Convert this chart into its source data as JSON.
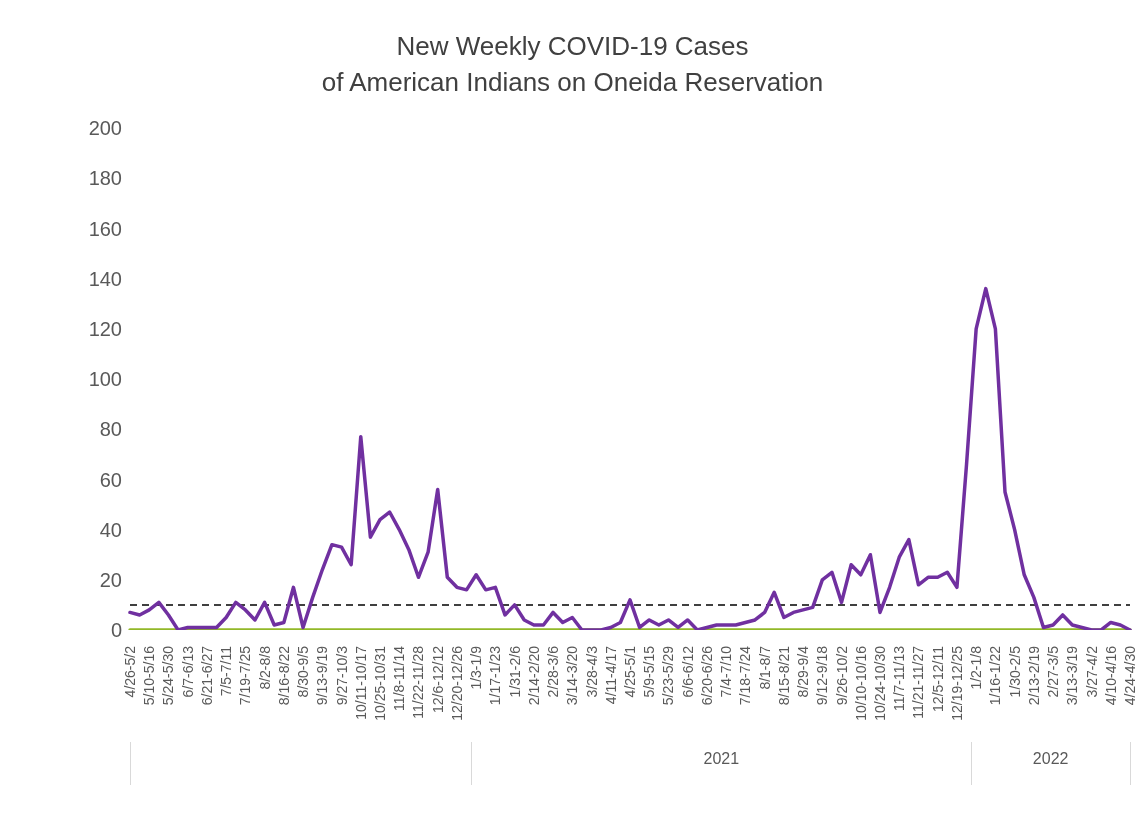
{
  "chart_data": {
    "type": "line",
    "title": "New Weekly COVID-19 Cases\nof American Indians on Oneida Reservation",
    "categories": [
      "4/26-5/2",
      null,
      "5/10-5/16",
      null,
      "5/24-5/30",
      null,
      "6/7-6/13",
      null,
      "6/21-6/27",
      null,
      "7/5-7/11",
      null,
      "7/19-7/25",
      null,
      "8/2-8/8",
      null,
      "8/16-8/22",
      null,
      "8/30-9/5",
      null,
      "9/13-9/19",
      null,
      "9/27-10/3",
      null,
      "10/11-10/17",
      null,
      "10/25-10/31",
      null,
      "11/8-11/14",
      null,
      "11/22-11/28",
      null,
      "12/6-12/12",
      null,
      "12/20-12/26",
      null,
      "1/3-1/9",
      null,
      "1/17-1/23",
      null,
      "1/31-2/6",
      null,
      "2/14-2/20",
      null,
      "2/28-3/6",
      null,
      "3/14-3/20",
      null,
      "3/28-4/3",
      null,
      "4/11-4/17",
      null,
      "4/25-5/1",
      null,
      "5/9-5/15",
      null,
      "5/23-5/29",
      null,
      "6/6-6/12",
      null,
      "6/20-6/26",
      null,
      "7/4-7/10",
      null,
      "7/18-7/24",
      null,
      "8/1-8/7",
      null,
      "8/15-8/21",
      null,
      "8/29-9/4",
      null,
      "9/12-9/18",
      null,
      "9/26-10/2",
      null,
      "10/10-10/16",
      null,
      "10/24-10/30",
      null,
      "11/7-11/13",
      null,
      "11/21-11/27",
      null,
      "12/5-12/11",
      null,
      "12/19-12/25",
      null,
      "1/2-1/8",
      null,
      "1/16-1/22",
      null,
      "1/30-2/5",
      null,
      "2/13-2/19",
      null,
      "2/27-3/5",
      null,
      "3/13-3/19",
      null,
      "3/27-4/2",
      null,
      "4/10-4/16",
      null,
      "4/24-4/30"
    ],
    "series": [
      {
        "color": "#92b828",
        "values": [
          0,
          0,
          0,
          0,
          0,
          0,
          0,
          0,
          0,
          0,
          0,
          0,
          0,
          0,
          0,
          0,
          0,
          0,
          0,
          0,
          0,
          0,
          0,
          0,
          0,
          0,
          0,
          0,
          0,
          0,
          0,
          0,
          0,
          0,
          0,
          0,
          0,
          0,
          0,
          0,
          0,
          0,
          0,
          0,
          0,
          0,
          0,
          0,
          0,
          0,
          0,
          0,
          0,
          0,
          0,
          0,
          0,
          0,
          0,
          0,
          0,
          0,
          0,
          0,
          0,
          0,
          0,
          0,
          0,
          0,
          0,
          0,
          0,
          0,
          0,
          0,
          0,
          0,
          0,
          0,
          0,
          0,
          0,
          0,
          0,
          0,
          0,
          0,
          0,
          0,
          0,
          0,
          0,
          0,
          0,
          0,
          0,
          0,
          0,
          0,
          0,
          0,
          0,
          0,
          0
        ]
      },
      {
        "color": "#7030a0",
        "values": [
          7,
          6,
          8,
          11,
          6,
          0,
          1,
          1,
          1,
          1,
          5,
          11,
          8,
          4,
          11,
          2,
          3,
          17,
          1,
          13,
          24,
          34,
          33,
          26,
          77,
          37,
          44,
          47,
          40,
          32,
          21,
          31,
          56,
          21,
          17,
          16,
          22,
          16,
          17,
          6,
          10,
          4,
          2,
          2,
          7,
          3,
          5,
          0,
          0,
          0,
          1,
          3,
          12,
          1,
          4,
          2,
          4,
          1,
          4,
          0,
          1,
          2,
          2,
          2,
          3,
          4,
          7,
          15,
          5,
          7,
          8,
          9,
          20,
          23,
          11,
          26,
          22,
          30,
          7,
          17,
          29,
          36,
          18,
          21,
          21,
          23,
          17,
          66,
          120,
          136,
          120,
          55,
          40,
          22,
          13,
          1,
          2,
          6,
          2,
          1,
          0,
          0,
          3,
          2,
          0
        ]
      }
    ],
    "ylim": [
      0,
      200
    ],
    "yticks": [
      0,
      20,
      40,
      60,
      80,
      100,
      120,
      140,
      160,
      180,
      200
    ],
    "ref_lines": [
      {
        "axis": "y",
        "value": 10,
        "color": "#404040",
        "line_style": "dashed"
      }
    ],
    "annotations": [
      "2021",
      "2022"
    ],
    "grid": false,
    "legend": false
  }
}
